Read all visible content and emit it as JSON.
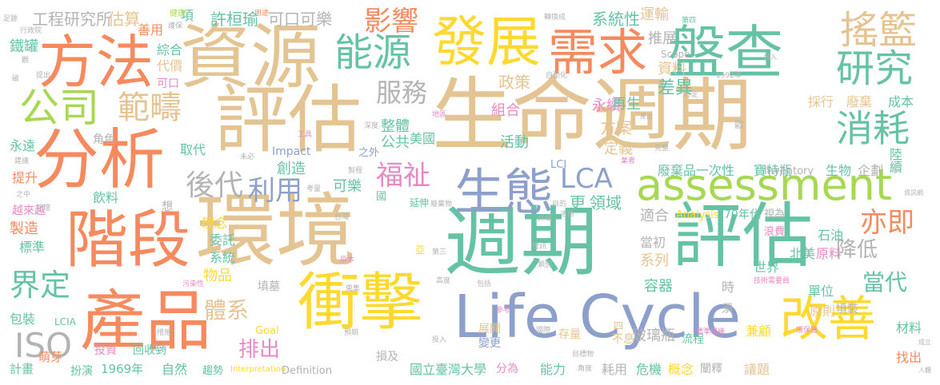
{
  "palette": {
    "orange": "#F58A5F",
    "green": "#66C2A5",
    "blue": "#8DA0CB",
    "sand": "#E5C494",
    "yellow": "#FFD92F",
    "lime": "#A6D854",
    "pink": "#E78AC3",
    "gray": "#B3B3B3"
  },
  "words": [
    {
      "text": "生命週期",
      "color": "sand"
    },
    {
      "text": "環境",
      "color": "sand"
    },
    {
      "text": "週期",
      "color": "green"
    },
    {
      "text": "評估",
      "color": "sand"
    },
    {
      "text": "資源",
      "color": "sand"
    },
    {
      "text": "評估",
      "color": "green"
    },
    {
      "text": "分析",
      "color": "orange"
    },
    {
      "text": "產品",
      "color": "orange"
    },
    {
      "text": "階段",
      "color": "orange"
    },
    {
      "text": "方法",
      "color": "orange"
    },
    {
      "text": "衝擊",
      "color": "yellow"
    },
    {
      "text": "盤查",
      "color": "green"
    },
    {
      "text": "發展",
      "color": "yellow"
    },
    {
      "text": "Life Cycle",
      "color": "blue"
    },
    {
      "text": "生態",
      "color": "blue"
    },
    {
      "text": "需求",
      "color": "orange"
    },
    {
      "text": "assessment",
      "color": "lime"
    },
    {
      "text": "改善",
      "color": "yellow"
    },
    {
      "text": "能源",
      "color": "green"
    },
    {
      "text": "公司",
      "color": "lime"
    },
    {
      "text": "搖籃",
      "color": "sand"
    },
    {
      "text": "研究",
      "color": "green"
    },
    {
      "text": "消耗",
      "color": "green"
    },
    {
      "text": "範疇",
      "color": "sand"
    },
    {
      "text": "影響",
      "color": "orange"
    },
    {
      "text": "LCA",
      "color": "blue"
    },
    {
      "text": "ISO",
      "color": "gray"
    },
    {
      "text": "界定",
      "color": "green"
    },
    {
      "text": "後代",
      "color": "gray"
    },
    {
      "text": "利用",
      "color": "blue"
    },
    {
      "text": "福祉",
      "color": "pink"
    },
    {
      "text": "亦即",
      "color": "orange"
    },
    {
      "text": "服務",
      "color": "gray"
    },
    {
      "text": "可口可樂",
      "color": "gray"
    },
    {
      "text": "工程研究所",
      "color": "gray"
    },
    {
      "text": "估算",
      "color": "sand"
    },
    {
      "text": "許桓瑜",
      "color": "green"
    },
    {
      "text": "系統性",
      "color": "green"
    },
    {
      "text": "運輸",
      "color": "sand"
    },
    {
      "text": "推展",
      "color": "gray"
    },
    {
      "text": "當代",
      "color": "green"
    },
    {
      "text": "降低",
      "color": "gray"
    },
    {
      "text": "排出",
      "color": "pink"
    },
    {
      "text": "體系",
      "color": "sand"
    },
    {
      "text": "玻璃瓶",
      "color": "gray"
    },
    {
      "text": "國立臺灣大學",
      "color": "green"
    },
    {
      "text": "差異",
      "color": "green"
    },
    {
      "text": "政策",
      "color": "sand"
    },
    {
      "text": "永續",
      "color": "pink"
    },
    {
      "text": "資料",
      "color": "sand"
    },
    {
      "text": "寶特瓶",
      "color": "green"
    },
    {
      "text": "廢棄品一次性",
      "color": "green"
    },
    {
      "text": "生物",
      "color": "green"
    },
    {
      "text": "企劃",
      "color": "gray"
    },
    {
      "text": "陸續",
      "color": "green"
    },
    {
      "text": "成本",
      "color": "green"
    },
    {
      "text": "採行",
      "color": "sand"
    },
    {
      "text": "廢棄",
      "color": "sand"
    },
    {
      "text": "方案",
      "color": "sand"
    },
    {
      "text": "定義",
      "color": "sand"
    },
    {
      "text": "公共",
      "color": "green"
    },
    {
      "text": "美國",
      "color": "green"
    },
    {
      "text": "活動",
      "color": "green"
    },
    {
      "text": "整體",
      "color": "green"
    },
    {
      "text": "組合",
      "color": "pink"
    },
    {
      "text": "再生",
      "color": "green"
    },
    {
      "text": "創造",
      "color": "green"
    },
    {
      "text": "可樂",
      "color": "green"
    },
    {
      "text": "更",
      "color": "green"
    },
    {
      "text": "領域",
      "color": "green"
    },
    {
      "text": "適合",
      "color": "gray"
    },
    {
      "text": "系列",
      "color": "sand"
    },
    {
      "text": "當初",
      "color": "gray"
    },
    {
      "text": "容器",
      "color": "green"
    },
    {
      "text": "世界",
      "color": "green"
    },
    {
      "text": "時",
      "color": "gray"
    },
    {
      "text": "北美",
      "color": "green"
    },
    {
      "text": "原料",
      "color": "pink"
    },
    {
      "text": "石油",
      "color": "green"
    },
    {
      "text": "單位",
      "color": "green"
    },
    {
      "text": "兼顧",
      "color": "yellow"
    },
    {
      "text": "原則",
      "color": "sand"
    },
    {
      "text": "材料",
      "color": "green"
    },
    {
      "text": "議題",
      "color": "sand"
    },
    {
      "text": "找出",
      "color": "orange"
    },
    {
      "text": "填裝",
      "color": "gray"
    },
    {
      "text": "流程",
      "color": "green"
    },
    {
      "text": "概念",
      "color": "yellow"
    },
    {
      "text": "闡釋",
      "color": "gray"
    },
    {
      "text": "危機",
      "color": "green"
    },
    {
      "text": "耗用",
      "color": "gray"
    },
    {
      "text": "能力",
      "color": "green"
    },
    {
      "text": "分為",
      "color": "pink"
    },
    {
      "text": "變更",
      "color": "blue"
    },
    {
      "text": "展開",
      "color": "sand"
    },
    {
      "text": "存量",
      "color": "sand"
    },
    {
      "text": "不息",
      "color": "sand"
    },
    {
      "text": "損及",
      "color": "gray"
    },
    {
      "text": "Definition",
      "color": "gray"
    },
    {
      "text": "自然",
      "color": "green"
    },
    {
      "text": "趨勢",
      "color": "green"
    },
    {
      "text": "1969年",
      "color": "green"
    },
    {
      "text": "扮演",
      "color": "green"
    },
    {
      "text": "萌芽",
      "color": "orange"
    },
    {
      "text": "計畫",
      "color": "green"
    },
    {
      "text": "回收到",
      "color": "green"
    },
    {
      "text": "投資",
      "color": "pink"
    },
    {
      "text": "包裝",
      "color": "green"
    },
    {
      "text": "標準",
      "color": "green"
    },
    {
      "text": "製造",
      "color": "orange"
    },
    {
      "text": "越來越",
      "color": "pink"
    },
    {
      "text": "提升",
      "color": "orange"
    },
    {
      "text": "永遠",
      "color": "green"
    },
    {
      "text": "鐵罐",
      "color": "green"
    },
    {
      "text": "善用",
      "color": "orange"
    },
    {
      "text": "綜合",
      "color": "green"
    },
    {
      "text": "代價",
      "color": "sand"
    },
    {
      "text": "可口",
      "color": "pink"
    },
    {
      "text": "項",
      "color": "green"
    },
    {
      "text": "角色",
      "color": "gray"
    },
    {
      "text": "取代",
      "color": "green"
    },
    {
      "text": "飲料",
      "color": "green"
    },
    {
      "text": "理念",
      "color": "yellow"
    },
    {
      "text": "委託",
      "color": "green"
    },
    {
      "text": "系統",
      "color": "green"
    },
    {
      "text": "物品",
      "color": "yellow"
    },
    {
      "text": "填墓",
      "color": "gray"
    },
    {
      "text": "Impact",
      "color": "blue"
    },
    {
      "text": "LCI",
      "color": "blue"
    },
    {
      "text": "Inventory",
      "color": "gray"
    },
    {
      "text": "Analysis",
      "color": "yellow"
    },
    {
      "text": "70年代",
      "color": "green"
    },
    {
      "text": "視為",
      "color": "gray"
    },
    {
      "text": "浪費",
      "color": "pink"
    },
    {
      "text": "Scope",
      "color": "gray"
    },
    {
      "text": "Goal",
      "color": "yellow"
    },
    {
      "text": "Interpretation",
      "color": "yellow"
    },
    {
      "text": "LCIA",
      "color": "green"
    },
    {
      "text": "之外",
      "color": "blue"
    },
    {
      "text": "延伸",
      "color": "green"
    },
    {
      "text": "國",
      "color": "green"
    },
    {
      "text": "想",
      "color": "gray"
    },
    {
      "text": "歐",
      "color": "gray"
    },
    {
      "text": "須",
      "color": "gray"
    },
    {
      "text": "四",
      "color": "sand"
    },
    {
      "text": "亞",
      "color": "yellow"
    },
    {
      "text": "足跡",
      "color": "gray"
    },
    {
      "text": "行政院",
      "color": "gray"
    },
    {
      "text": "健康",
      "color": "lime"
    },
    {
      "text": "護保",
      "color": "gray"
    },
    {
      "text": "用途",
      "color": "orange"
    },
    {
      "text": "轉換成",
      "color": "gray"
    },
    {
      "text": "第四",
      "color": "green"
    },
    {
      "text": "1992年",
      "color": "gray"
    },
    {
      "text": "自動化",
      "color": "gray"
    },
    {
      "text": "觀",
      "color": "gray"
    },
    {
      "text": "破",
      "color": "gray"
    },
    {
      "text": "提出",
      "color": "gray"
    },
    {
      "text": "建議",
      "color": "gray"
    },
    {
      "text": "之中",
      "color": "gray"
    },
    {
      "text": "管理",
      "color": "gray"
    },
    {
      "text": "工具",
      "color": "pink"
    },
    {
      "text": "地區",
      "color": "pink"
    },
    {
      "text": "深度",
      "color": "gray"
    },
    {
      "text": "完整",
      "color": "gray"
    },
    {
      "text": "訂定",
      "color": "gray"
    },
    {
      "text": "未必",
      "color": "gray"
    },
    {
      "text": "製程",
      "color": "gray"
    },
    {
      "text": "業者",
      "color": "pink"
    },
    {
      "text": "考量",
      "color": "gray"
    },
    {
      "text": "廢棄物",
      "color": "gray"
    },
    {
      "text": "台灣",
      "color": "gray"
    },
    {
      "text": "目的",
      "color": "gray"
    },
    {
      "text": "清單",
      "color": "gray"
    },
    {
      "text": "詳細",
      "color": "gray"
    },
    {
      "text": "原本",
      "color": "pink"
    },
    {
      "text": "第三",
      "color": "gray"
    },
    {
      "text": "資訊",
      "color": "gray"
    },
    {
      "text": "類別",
      "color": "gray"
    },
    {
      "text": "技術需要員",
      "color": "pink"
    },
    {
      "text": "污染性",
      "color": "pink"
    },
    {
      "text": "措施",
      "color": "gray"
    },
    {
      "text": "蒐集",
      "color": "gray"
    },
    {
      "text": "高度",
      "color": "gray"
    },
    {
      "text": "包括",
      "color": "gray"
    },
    {
      "text": "參考",
      "color": "pink"
    },
    {
      "text": "預期",
      "color": "gray"
    },
    {
      "text": "國際",
      "color": "gray"
    },
    {
      "text": "標準組織",
      "color": "pink"
    },
    {
      "text": "環保署",
      "color": "pink"
    },
    {
      "text": "正式",
      "color": "gray"
    },
    {
      "text": "投入",
      "color": "gray"
    },
    {
      "text": "目標物",
      "color": "gray"
    },
    {
      "text": "角度",
      "color": "gray"
    },
    {
      "text": "成立",
      "color": "gray"
    },
    {
      "text": "人體",
      "color": "gray"
    },
    {
      "text": "資訊網",
      "color": "gray"
    },
    {
      "text": "產出",
      "color": "gray"
    },
    {
      "text": "納入",
      "color": "gray"
    }
  ]
}
